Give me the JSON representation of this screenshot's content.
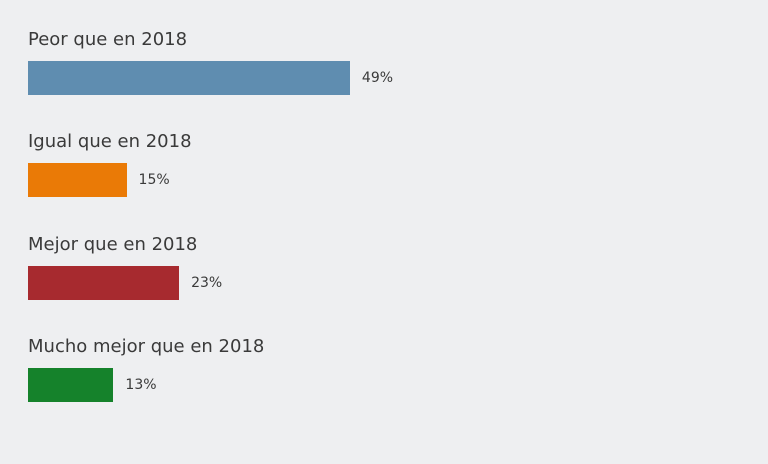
{
  "chart_data": {
    "type": "bar",
    "orientation": "horizontal",
    "categories": [
      "Peor que en 2018",
      "Igual que en 2018",
      "Mejor que en 2018",
      "Mucho mejor que en 2018"
    ],
    "values": [
      49,
      15,
      23,
      13
    ],
    "value_labels": [
      "49%",
      "15%",
      "23%",
      "13%"
    ],
    "colors": [
      "#5f8db0",
      "#ea7a06",
      "#a72a2f",
      "#15822b"
    ],
    "unit": "%",
    "grid": false,
    "legend": "none"
  }
}
